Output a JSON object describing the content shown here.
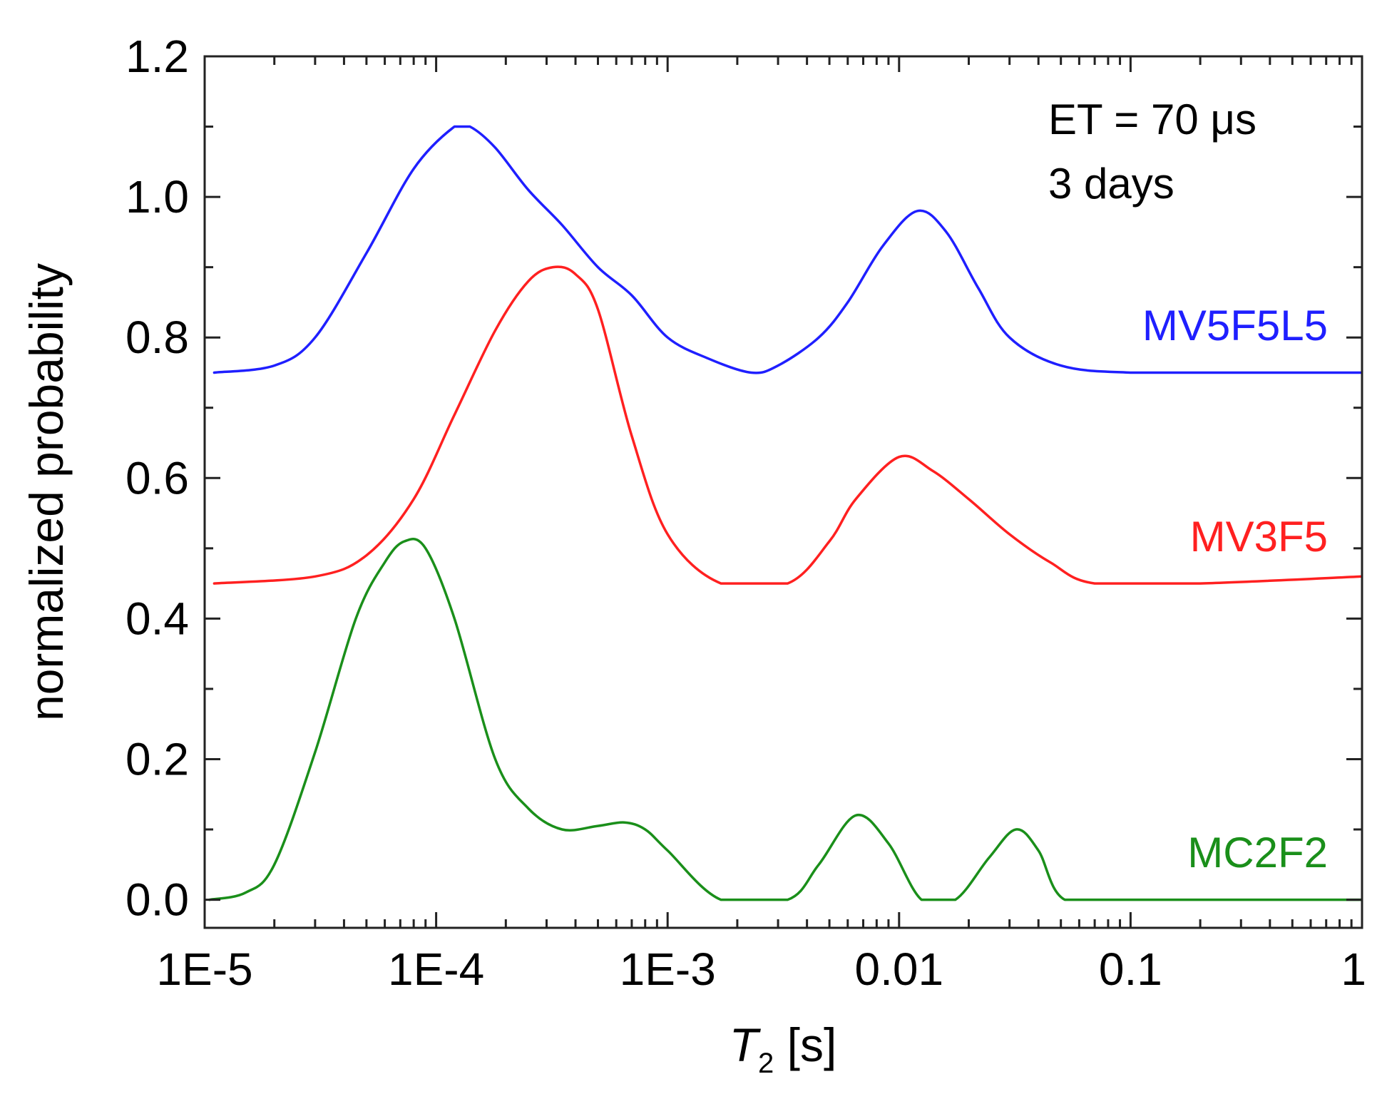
{
  "chart_data": {
    "type": "line",
    "xlabel": {
      "italic": "T",
      "subscript": "2",
      "rest": " [s]"
    },
    "ylabel": "normalized probability",
    "xscale": "log",
    "xlim": [
      1e-05,
      1
    ],
    "ylim": [
      -0.04,
      1.2
    ],
    "x_ticks": [
      {
        "value": 1e-05,
        "label": "1E-5"
      },
      {
        "value": 0.0001,
        "label": "1E-4"
      },
      {
        "value": 0.001,
        "label": "1E-3"
      },
      {
        "value": 0.01,
        "label": "0.01"
      },
      {
        "value": 0.1,
        "label": "0.1"
      },
      {
        "value": 1,
        "label": "1"
      }
    ],
    "y_ticks": [
      {
        "value": 0.0,
        "label": "0.0"
      },
      {
        "value": 0.2,
        "label": "0.2"
      },
      {
        "value": 0.4,
        "label": "0.4"
      },
      {
        "value": 0.6,
        "label": "0.6"
      },
      {
        "value": 0.8,
        "label": "0.8"
      },
      {
        "value": 1.0,
        "label": "1.0"
      },
      {
        "value": 1.2,
        "label": "1.2"
      }
    ],
    "grid": false,
    "annotation": [
      "ET = 70 μs",
      "3 days"
    ],
    "series": [
      {
        "name": "MV5F5L5",
        "color": "#1f1fff",
        "x": [
          1.1e-05,
          2e-05,
          3e-05,
          5e-05,
          8e-05,
          0.00012,
          0.00014,
          0.00018,
          0.00025,
          0.00035,
          0.0005,
          0.0007,
          0.001,
          0.0015,
          0.0023,
          0.003,
          0.0045,
          0.006,
          0.0085,
          0.012,
          0.016,
          0.022,
          0.03,
          0.05,
          0.1,
          0.3,
          1.0
        ],
        "y": [
          0.75,
          0.76,
          0.8,
          0.92,
          1.04,
          1.1,
          1.1,
          1.07,
          1.01,
          0.96,
          0.9,
          0.86,
          0.8,
          0.77,
          0.75,
          0.76,
          0.8,
          0.85,
          0.93,
          0.98,
          0.95,
          0.87,
          0.8,
          0.76,
          0.75,
          0.75,
          0.75
        ]
      },
      {
        "name": "MV3F5",
        "color": "#ff2020",
        "x": [
          1.1e-05,
          3e-05,
          5e-05,
          8e-05,
          0.00012,
          0.00018,
          0.00025,
          0.00032,
          0.0004,
          0.0005,
          0.0007,
          0.001,
          0.0017,
          0.0033,
          0.005,
          0.0065,
          0.01,
          0.014,
          0.02,
          0.03,
          0.045,
          0.07,
          0.2,
          1.0
        ],
        "y": [
          0.45,
          0.46,
          0.49,
          0.57,
          0.69,
          0.81,
          0.88,
          0.9,
          0.89,
          0.84,
          0.66,
          0.52,
          0.45,
          0.45,
          0.51,
          0.57,
          0.63,
          0.61,
          0.57,
          0.52,
          0.48,
          0.45,
          0.45,
          0.46
        ]
      },
      {
        "name": "MC2F2",
        "color": "#1a8f1a",
        "x": [
          1.05e-05,
          1.5e-05,
          2e-05,
          3e-05,
          4.5e-05,
          6e-05,
          7.3e-05,
          9e-05,
          0.00012,
          0.00018,
          0.00025,
          0.00035,
          0.0005,
          0.00065,
          0.0008,
          0.001,
          0.0017,
          0.0033,
          0.0045,
          0.0065,
          0.009,
          0.0125,
          0.0175,
          0.0245,
          0.032,
          0.04,
          0.052,
          0.1,
          1.0
        ],
        "y": [
          0.0,
          0.01,
          0.05,
          0.21,
          0.4,
          0.48,
          0.51,
          0.5,
          0.4,
          0.2,
          0.13,
          0.1,
          0.105,
          0.11,
          0.1,
          0.07,
          0.0,
          0.0,
          0.05,
          0.12,
          0.08,
          0.0,
          0.0,
          0.06,
          0.1,
          0.07,
          0.0,
          0.0,
          0.0
        ]
      }
    ]
  }
}
